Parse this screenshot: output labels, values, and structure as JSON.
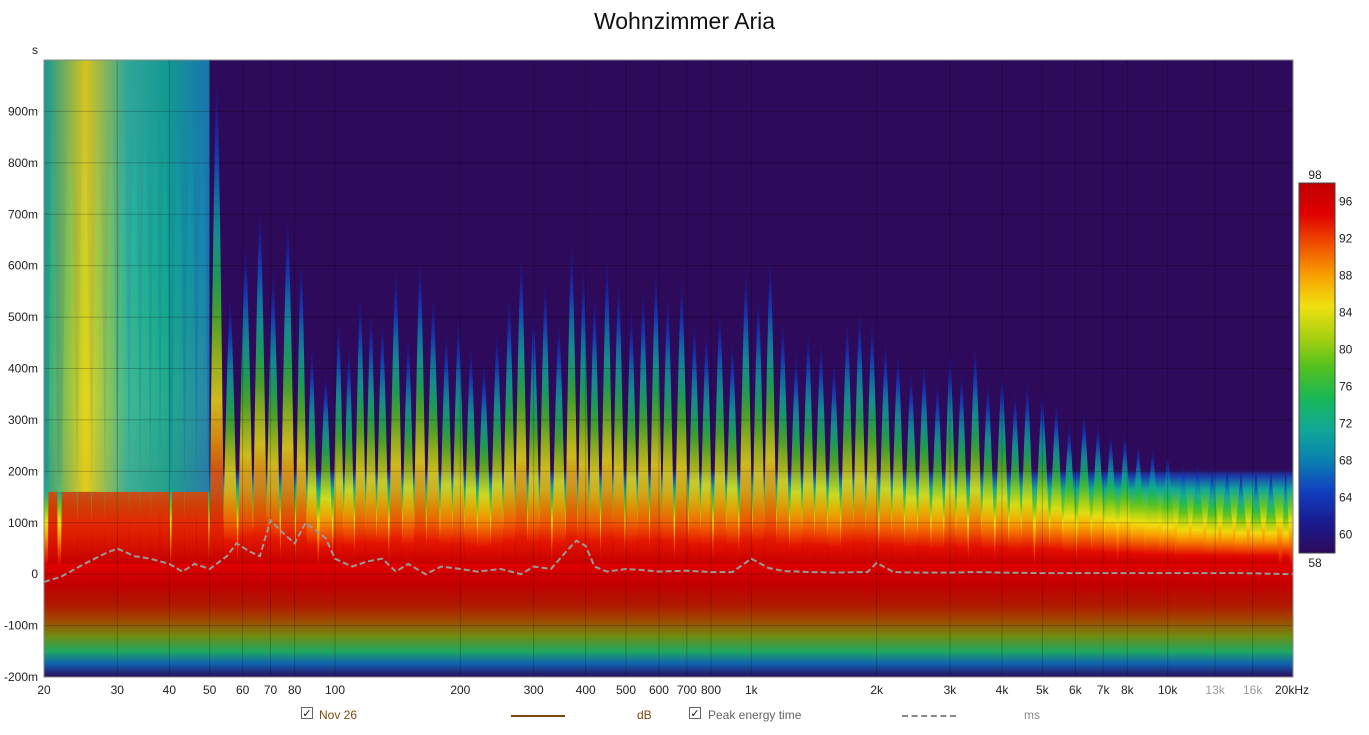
{
  "chart_data": {
    "type": "heatmap",
    "title": "Wohnzimmer Aria",
    "ylabel": "s",
    "xlabel": "",
    "x_scale": "log",
    "xlim": [
      20,
      20000
    ],
    "ylim": [
      -0.2,
      1.0
    ],
    "x_ticks": [
      "20",
      "30",
      "40",
      "50",
      "60",
      "70",
      "80",
      "100",
      "200",
      "300",
      "400",
      "500",
      "600",
      "700",
      "800",
      "1k",
      "2k",
      "3k",
      "4k",
      "5k",
      "6k",
      "7k",
      "8k",
      "10k",
      "13k",
      "16k",
      "20kHz"
    ],
    "x_tick_values": [
      20,
      30,
      40,
      50,
      60,
      70,
      80,
      100,
      200,
      300,
      400,
      500,
      600,
      700,
      800,
      1000,
      2000,
      3000,
      4000,
      5000,
      6000,
      7000,
      8000,
      10000,
      13000,
      16000,
      20000
    ],
    "y_ticks": [
      "900m",
      "800m",
      "700m",
      "600m",
      "500m",
      "400m",
      "300m",
      "200m",
      "100m",
      "0",
      "-100m",
      "-200m"
    ],
    "y_tick_values": [
      0.9,
      0.8,
      0.7,
      0.6,
      0.5,
      0.4,
      0.3,
      0.2,
      0.1,
      0,
      -0.1,
      -0.2
    ],
    "grid": true,
    "colorbar": {
      "min": 58,
      "max": 98,
      "ticks": [
        "98",
        "96",
        "92",
        "88",
        "84",
        "80",
        "76",
        "72",
        "68",
        "64",
        "60",
        "58"
      ],
      "tick_values": [
        98,
        96,
        92,
        88,
        84,
        80,
        76,
        72,
        68,
        64,
        60,
        58
      ],
      "colors": [
        "#2d0a5a",
        "#1a1a90",
        "#1040c0",
        "#0a80b0",
        "#10a898",
        "#18b858",
        "#50c020",
        "#a8d010",
        "#f0e010",
        "#f8a000",
        "#f05000",
        "#e00000",
        "#c00000"
      ]
    },
    "peak_energy_time": {
      "name": "Peak energy time",
      "x": [
        20,
        22,
        25,
        28,
        30,
        33,
        36,
        40,
        43,
        46,
        50,
        55,
        58,
        62,
        66,
        70,
        75,
        80,
        85,
        90,
        95,
        100,
        110,
        120,
        130,
        140,
        150,
        165,
        180,
        200,
        220,
        250,
        280,
        300,
        330,
        360,
        380,
        400,
        420,
        450,
        500,
        550,
        600,
        700,
        800,
        900,
        1000,
        1100,
        1200,
        1400,
        1600,
        1800,
        1900,
        2000,
        2200,
        2500,
        3000,
        3500,
        4000,
        5000,
        7000,
        10000,
        15000,
        20000
      ],
      "y": [
        -0.015,
        -0.005,
        0.02,
        0.04,
        0.05,
        0.035,
        0.03,
        0.02,
        0.005,
        0.02,
        0.01,
        0.035,
        0.06,
        0.045,
        0.035,
        0.105,
        0.08,
        0.06,
        0.1,
        0.085,
        0.07,
        0.03,
        0.015,
        0.025,
        0.03,
        0.005,
        0.02,
        0.0,
        0.015,
        0.01,
        0.005,
        0.01,
        0.0,
        0.015,
        0.01,
        0.045,
        0.065,
        0.055,
        0.015,
        0.005,
        0.01,
        0.008,
        0.005,
        0.007,
        0.004,
        0.004,
        0.03,
        0.012,
        0.006,
        0.004,
        0.003,
        0.004,
        0.004,
        0.022,
        0.004,
        0.003,
        0.003,
        0.004,
        0.003,
        0.002,
        0.002,
        0.002,
        0.002,
        0.0
      ]
    },
    "spectrogram": {
      "ridge_max_time_s": 1.0,
      "ridge_frequencies": [
        21,
        23,
        25,
        27,
        29,
        31,
        33,
        35,
        37,
        39,
        42,
        45,
        48,
        52,
        56,
        61,
        66,
        71,
        77,
        83,
        88,
        95,
        102,
        108,
        115,
        122,
        130,
        140,
        150,
        160,
        172,
        185,
        198,
        212,
        228,
        245,
        262,
        280,
        300,
        320,
        345,
        370,
        395,
        420,
        450,
        480,
        515,
        550,
        590,
        630,
        680,
        730,
        780,
        840,
        900,
        970,
        1040,
        1110,
        1190,
        1280,
        1370,
        1470,
        1580,
        1700,
        1820,
        1950,
        2100,
        2250,
        2420,
        2600,
        2800,
        3000,
        3200,
        3450,
        3700,
        4000,
        4300,
        4600,
        5000,
        5400,
        5800,
        6300,
        6800,
        7300,
        7900,
        8500,
        9200,
        10000,
        10900,
        11800,
        12800,
        13900,
        15000,
        16300,
        17700,
        19200
      ],
      "ridge_decay_times_s": [
        0.98,
        0.98,
        0.98,
        0.98,
        0.98,
        0.98,
        0.98,
        0.98,
        0.98,
        0.98,
        0.98,
        0.98,
        0.98,
        0.98,
        0.55,
        0.65,
        0.72,
        0.6,
        0.7,
        0.62,
        0.45,
        0.4,
        0.5,
        0.45,
        0.55,
        0.52,
        0.5,
        0.6,
        0.47,
        0.62,
        0.55,
        0.48,
        0.5,
        0.45,
        0.42,
        0.48,
        0.55,
        0.63,
        0.52,
        0.58,
        0.5,
        0.65,
        0.6,
        0.55,
        0.62,
        0.58,
        0.52,
        0.56,
        0.6,
        0.55,
        0.58,
        0.5,
        0.48,
        0.52,
        0.46,
        0.6,
        0.55,
        0.62,
        0.5,
        0.44,
        0.48,
        0.46,
        0.42,
        0.5,
        0.52,
        0.5,
        0.46,
        0.44,
        0.4,
        0.42,
        0.38,
        0.44,
        0.4,
        0.45,
        0.38,
        0.4,
        0.36,
        0.38,
        0.36,
        0.34,
        0.3,
        0.32,
        0.3,
        0.28,
        0.28,
        0.26,
        0.25,
        0.24,
        0.22,
        0.22,
        0.21,
        0.21,
        0.2,
        0.2,
        0.2,
        0.2
      ]
    },
    "legend": [
      {
        "label": "Nov 26",
        "checked": true,
        "color": "#7a4a10",
        "unit": "dB"
      },
      {
        "label": "Peak energy time",
        "checked": true,
        "color": "#888888",
        "unit": "ms"
      }
    ]
  },
  "icons": {
    "checkbox": "check-icon"
  }
}
